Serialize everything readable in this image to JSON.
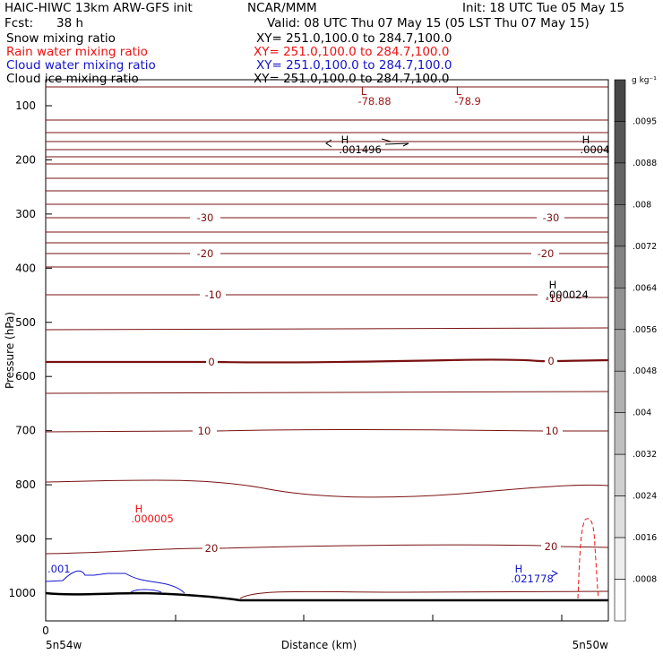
{
  "header": {
    "model": "HAIC-HIWC 13km ARW-GFS init",
    "org": "NCAR/MMM",
    "init": "Init: 18 UTC Tue 05 May 15",
    "fcst_label": "Fcst:",
    "fcst_value": "38 h",
    "valid": "Valid: 08 UTC Thu 07 May 15 (05 LST Thu 07 May 15)"
  },
  "fields": [
    {
      "name": "Snow mixing ratio",
      "xy": "XY= 251.0,100.0 to 284.7,100.0",
      "color": "#000000"
    },
    {
      "name": "Rain water mixing ratio",
      "xy": "XY= 251.0,100.0 to 284.7,100.0",
      "color": "#ee1111"
    },
    {
      "name": "Cloud water mixing ratio",
      "xy": "XY= 251.0,100.0 to 284.7,100.0",
      "color": "#1515cc"
    },
    {
      "name": "Cloud ice mixing ratio",
      "xy": "XY= 251.0,100.0 to 284.7,100.0",
      "color": "#000000"
    }
  ],
  "chart_data": {
    "type": "contour-cross-section",
    "ylabel": "Pressure (hPa)",
    "xlabel": "Distance (km)",
    "x_tick_0": "0",
    "x_left_label": "5n54w",
    "x_right_label": "5n50w",
    "yticks": [
      100,
      200,
      300,
      400,
      500,
      600,
      700,
      800,
      900,
      1000
    ],
    "ylim": [
      1050,
      50
    ],
    "colorbar": {
      "unit": "g kg⁻¹",
      "labels": [
        ".0095",
        ".0088",
        ".008",
        ".0072",
        ".0064",
        ".0056",
        ".0048",
        ".004",
        ".0032",
        ".0024",
        ".0016",
        ".0008"
      ]
    },
    "temperature_labels": [
      {
        "value": "-30",
        "pressure": 305,
        "positions": [
          "left",
          "right"
        ]
      },
      {
        "value": "-20",
        "pressure": 405,
        "positions": [
          "left",
          "right"
        ]
      },
      {
        "value": "-10",
        "pressure": 450,
        "positions": [
          "left"
        ]
      },
      {
        "value": "-10",
        "pressure": 470,
        "positions": [
          "right"
        ]
      },
      {
        "value": "0",
        "pressure": 570,
        "positions": [
          "left",
          "right"
        ]
      },
      {
        "value": "10",
        "pressure": 700,
        "positions": [
          "left",
          "right"
        ]
      },
      {
        "value": "20",
        "pressure": 925,
        "positions": [
          "left",
          "right"
        ]
      }
    ],
    "annotations": [
      {
        "marker": "L",
        "value": "-78.88",
        "color": "#a01818"
      },
      {
        "marker": "L",
        "value": "-78.9",
        "color": "#a01818"
      },
      {
        "marker": "H",
        "value": ".001496",
        "color": "#000000"
      },
      {
        "marker": "H",
        "value": ".0004",
        "color": "#000000"
      },
      {
        "marker": "H",
        "value": ".000024",
        "color": "#000000"
      },
      {
        "marker": "H",
        "value": ".000005",
        "color": "#e11"
      },
      {
        "marker": "H",
        "value": ".021778",
        "color": "#1515cc"
      },
      {
        "marker": "",
        "value": ".001",
        "color": "#1515cc"
      }
    ]
  }
}
